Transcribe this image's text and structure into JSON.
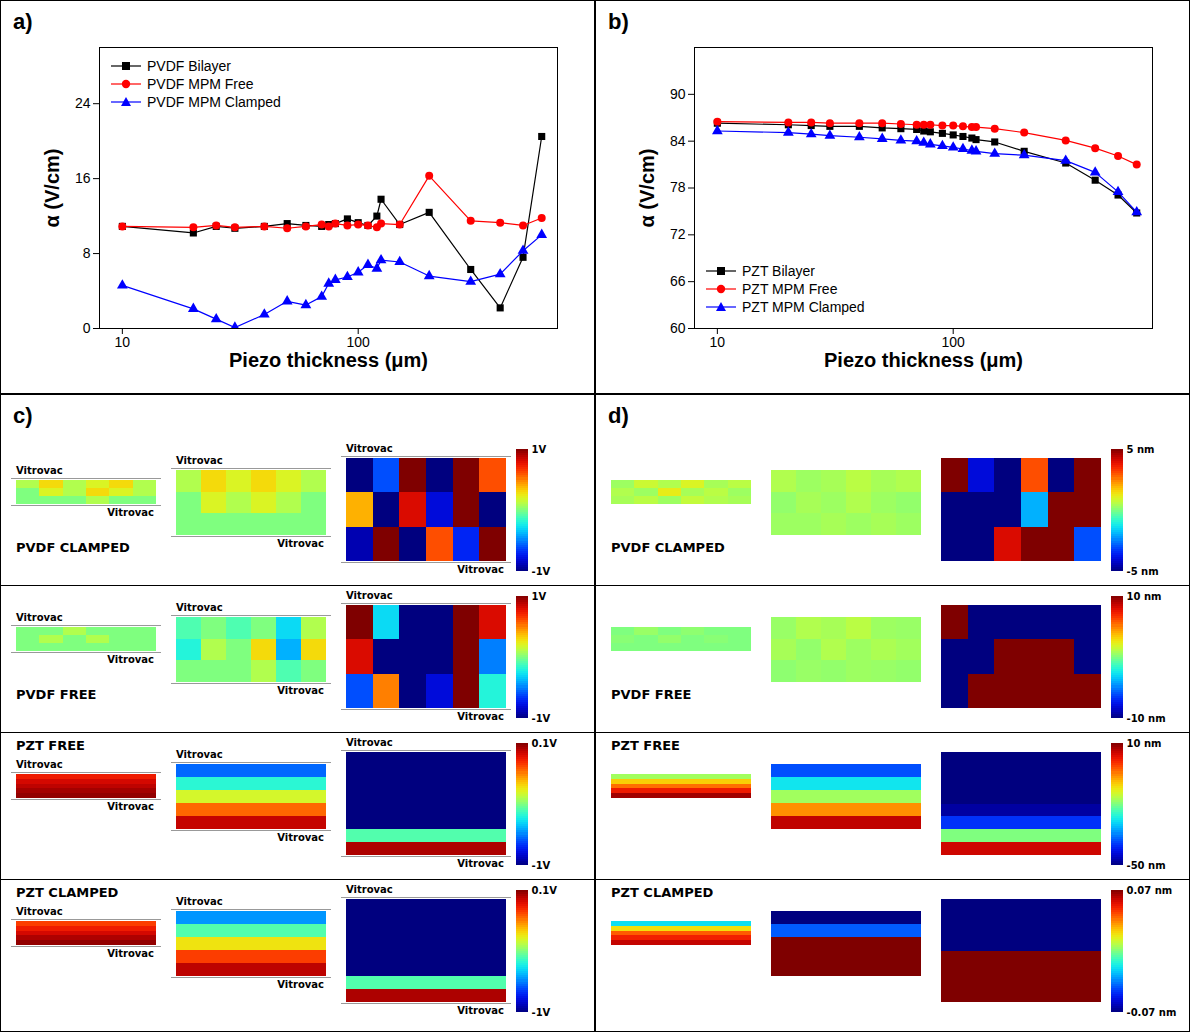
{
  "chart_data": [
    {
      "type": "line",
      "panel": "a)",
      "x_label": "Piezo thickness (μm)",
      "y_label": "α (V/cm)",
      "x": [
        10,
        20,
        25,
        30,
        40,
        50,
        60,
        70,
        75,
        80,
        90,
        100,
        110,
        120,
        125,
        150,
        200,
        300,
        400,
        500,
        600
      ],
      "xlim": [
        8,
        700
      ],
      "xticks": [
        10,
        100
      ],
      "ylim": [
        0,
        30
      ],
      "yticks": [
        0,
        8,
        16,
        24
      ],
      "log": "x",
      "grid": false,
      "legend": "top-left",
      "series": [
        {
          "name": "PVDF Bilayer",
          "color": "#000000",
          "marker": "square",
          "values": [
            10.9,
            10.2,
            10.9,
            10.7,
            10.9,
            11.2,
            11.0,
            10.9,
            11.1,
            11.2,
            11.7,
            11.3,
            11.0,
            12.0,
            13.8,
            11.1,
            12.4,
            6.3,
            2.2,
            7.6,
            20.5
          ]
        },
        {
          "name": "PVDF MPM Free",
          "color": "#ff0000",
          "marker": "circle",
          "values": [
            10.9,
            10.8,
            11.0,
            10.8,
            10.9,
            10.7,
            10.9,
            11.1,
            10.9,
            11.2,
            11.0,
            11.1,
            11.0,
            10.8,
            11.2,
            11.1,
            16.3,
            11.5,
            11.3,
            11.0,
            11.8
          ]
        },
        {
          "name": "PVDF MPM Clamped",
          "color": "#0000ff",
          "marker": "triangle",
          "values": [
            4.6,
            2.1,
            1.0,
            0.1,
            1.5,
            2.9,
            2.5,
            3.4,
            4.8,
            5.2,
            5.5,
            6.0,
            6.8,
            6.4,
            7.3,
            7.1,
            5.6,
            5.0,
            5.8,
            8.3,
            10.0
          ]
        }
      ]
    },
    {
      "type": "line",
      "panel": "b)",
      "x_label": "Piezo thickness (μm)",
      "y_label": "α (V/cm)",
      "x": [
        10,
        20,
        25,
        30,
        40,
        50,
        60,
        70,
        75,
        80,
        90,
        100,
        110,
        120,
        125,
        150,
        200,
        300,
        400,
        500,
        600
      ],
      "xlim": [
        8,
        700
      ],
      "xticks": [
        10,
        100
      ],
      "ylim": [
        60,
        96
      ],
      "yticks": [
        60,
        66,
        72,
        78,
        84,
        90
      ],
      "log": "x",
      "grid": false,
      "legend": "bottom-left",
      "series": [
        {
          "name": "PZT Bilayer",
          "color": "#000000",
          "marker": "square",
          "values": [
            86.3,
            86.1,
            86.0,
            85.9,
            85.9,
            85.7,
            85.6,
            85.5,
            85.3,
            85.2,
            85.0,
            84.8,
            84.6,
            84.4,
            84.2,
            83.9,
            82.7,
            81.2,
            79.0,
            77.1,
            74.8
          ]
        },
        {
          "name": "PZT MPM Free",
          "color": "#ff0000",
          "marker": "circle",
          "values": [
            86.5,
            86.4,
            86.4,
            86.3,
            86.3,
            86.3,
            86.2,
            86.1,
            86.1,
            86.1,
            86.0,
            86.0,
            85.9,
            85.8,
            85.8,
            85.6,
            85.1,
            84.1,
            83.1,
            82.1,
            81.0
          ]
        },
        {
          "name": "PZT MPM Clamped",
          "color": "#0000ff",
          "marker": "triangle",
          "values": [
            85.3,
            85.1,
            84.9,
            84.7,
            84.5,
            84.3,
            84.1,
            84.0,
            83.8,
            83.6,
            83.4,
            83.2,
            83.0,
            82.8,
            82.7,
            82.4,
            82.2,
            81.5,
            80.0,
            77.5,
            74.9
          ]
        }
      ]
    },
    {
      "type": "heatmap",
      "panel": "c)",
      "layer_label": "Vitrovac",
      "rows": [
        {
          "label": "PVDF CLAMPED",
          "colorbar": {
            "range": [
              -1,
              1
            ],
            "ticks": [
              {
                "value": 1,
                "label": "1V"
              },
              {
                "value": -1,
                "label": "-1V"
              }
            ]
          },
          "maps": [
            [
              [
                0.1,
                0.3,
                0.1,
                0.2,
                0.3,
                0.1
              ],
              [
                0.0,
                0.2,
                0.1,
                0.3,
                0.2,
                0.1
              ],
              [
                0.0,
                0.0,
                0.0,
                0.1,
                0.0,
                0.0
              ]
            ],
            [
              [
                0.1,
                0.3,
                0.2,
                0.3,
                0.2,
                0.1
              ],
              [
                0.0,
                0.2,
                0.1,
                0.2,
                0.1,
                0.0
              ],
              [
                0.0,
                0.0,
                0.0,
                0.0,
                0.0,
                0.0
              ]
            ],
            [
              [
                -1,
                -0.6,
                1,
                -1,
                1,
                0.6
              ],
              [
                0.4,
                -1,
                0.8,
                -0.8,
                1,
                -1
              ],
              [
                -0.9,
                1,
                -1,
                0.6,
                -0.7,
                1
              ]
            ]
          ]
        },
        {
          "label": "PVDF FREE",
          "colorbar": {
            "range": [
              -1,
              1
            ],
            "ticks": [
              {
                "value": 1,
                "label": "1V"
              },
              {
                "value": -1,
                "label": "-1V"
              }
            ]
          },
          "maps": [
            [
              [
                0.0,
                0.0,
                0.1,
                0.0,
                0.0,
                0.0
              ],
              [
                0.0,
                0.1,
                0.0,
                0.1,
                0.0,
                0.0
              ],
              [
                0.0,
                0.0,
                0.0,
                0.0,
                0.0,
                0.0
              ]
            ],
            [
              [
                -0.1,
                0.0,
                -0.1,
                0.0,
                -0.3,
                0.1
              ],
              [
                -0.2,
                0.1,
                0.0,
                0.3,
                -0.4,
                0.3
              ],
              [
                0.0,
                0.0,
                0.0,
                0.1,
                -0.1,
                0.0
              ]
            ],
            [
              [
                1,
                -0.3,
                -1,
                -1,
                1,
                0.8
              ],
              [
                0.8,
                -1,
                -1,
                -1,
                1,
                -0.5
              ],
              [
                -0.6,
                0.5,
                -1,
                -0.8,
                1,
                -0.2
              ]
            ]
          ]
        },
        {
          "label": "PZT FREE",
          "colorbar": {
            "range": [
              -1,
              0.1
            ],
            "ticks": [
              {
                "value": 0.1,
                "label": "0.1V"
              },
              {
                "value": -1,
                "label": "-1V"
              }
            ]
          },
          "maps": [
            [
              [
                -0.05
              ],
              [
                0.0
              ],
              [
                0.03
              ],
              [
                0.06
              ],
              [
                0.08
              ]
            ],
            [
              [
                -0.75
              ],
              [
                -0.55
              ],
              [
                -0.35
              ],
              [
                -0.15
              ],
              [
                0.02
              ]
            ],
            [
              [
                -1
              ],
              [
                -1
              ],
              [
                -1
              ],
              [
                -1
              ],
              [
                -1
              ],
              [
                -1
              ],
              [
                -0.5
              ],
              [
                0.05
              ]
            ]
          ]
        },
        {
          "label": "PZT CLAMPED",
          "colorbar": {
            "range": [
              -1,
              0.1
            ],
            "ticks": [
              {
                "value": 0.1,
                "label": "0.1V"
              },
              {
                "value": -1,
                "label": "-1V"
              }
            ]
          },
          "maps": [
            [
              [
                -0.1
              ],
              [
                -0.05
              ],
              [
                0.0
              ],
              [
                0.05
              ],
              [
                0.08
              ]
            ],
            [
              [
                -0.7
              ],
              [
                -0.5
              ],
              [
                -0.3
              ],
              [
                -0.1
              ],
              [
                0.03
              ]
            ],
            [
              [
                -1
              ],
              [
                -1
              ],
              [
                -1
              ],
              [
                -1
              ],
              [
                -1
              ],
              [
                -1
              ],
              [
                -0.5
              ],
              [
                0.05
              ]
            ]
          ]
        }
      ]
    },
    {
      "type": "heatmap",
      "panel": "d)",
      "rows": [
        {
          "label": "PVDF CLAMPED",
          "colorbar": {
            "range": [
              -5,
              5
            ],
            "ticks": [
              {
                "value": 5,
                "label": "5 nm"
              },
              {
                "value": -5,
                "label": "-5 nm"
              }
            ]
          },
          "maps": [
            [
              [
                0.3,
                0.8,
                0.5,
                1.0,
                0.4,
                0.6
              ],
              [
                0.5,
                0.3,
                1.2,
                0.4,
                0.6,
                0.3
              ],
              [
                0.4,
                0.6,
                0.3,
                0.7,
                0.5,
                0.4
              ]
            ],
            [
              [
                0.5,
                0.3,
                0.4,
                0.6,
                0.4,
                0.5
              ],
              [
                0.2,
                0.4,
                0.3,
                0.5,
                0.3,
                0.2
              ],
              [
                0.3,
                0.3,
                0.4,
                0.3,
                0.4,
                0.3
              ]
            ],
            [
              [
                5,
                -4,
                -5,
                3,
                -5,
                5
              ],
              [
                -5,
                -5,
                -5,
                -2,
                5,
                5
              ],
              [
                -5,
                -5,
                4,
                5,
                5,
                -3
              ]
            ]
          ]
        },
        {
          "label": "PVDF FREE",
          "colorbar": {
            "range": [
              -10,
              10
            ],
            "ticks": [
              {
                "value": 10,
                "label": "10 nm"
              },
              {
                "value": -10,
                "label": "-10 nm"
              }
            ]
          },
          "maps": [
            [
              [
                0,
                0.5,
                0,
                0.3,
                0,
                0
              ],
              [
                0.2,
                0,
                0.4,
                0,
                0.2,
                0
              ],
              [
                0,
                0,
                0,
                0,
                0,
                0
              ]
            ],
            [
              [
                0.5,
                1,
                0.8,
                1.2,
                0.6,
                0.5
              ],
              [
                0.8,
                0.4,
                1,
                0.6,
                0.9,
                0.7
              ],
              [
                0.3,
                0.5,
                0.4,
                0.6,
                0.5,
                0.4
              ]
            ],
            [
              [
                10,
                -10,
                -10,
                -10,
                -10,
                -10
              ],
              [
                -10,
                -10,
                10,
                10,
                10,
                -10
              ],
              [
                -10,
                10,
                10,
                10,
                10,
                10
              ]
            ]
          ]
        },
        {
          "label": "PZT FREE",
          "colorbar": {
            "range": [
              -50,
              10
            ],
            "ticks": [
              {
                "value": 10,
                "label": "10 nm"
              },
              {
                "value": -50,
                "label": "-50 nm"
              }
            ]
          },
          "maps": [
            [
              [
                -18
              ],
              [
                -10
              ],
              [
                -4
              ],
              [
                2
              ],
              [
                8
              ]
            ],
            [
              [
                -38
              ],
              [
                -28
              ],
              [
                -18
              ],
              [
                -6
              ],
              [
                6
              ]
            ],
            [
              [
                -50
              ],
              [
                -50
              ],
              [
                -50
              ],
              [
                -50
              ],
              [
                -48
              ],
              [
                -40
              ],
              [
                -20
              ],
              [
                5
              ]
            ]
          ]
        },
        {
          "label": "PZT CLAMPED",
          "colorbar": {
            "range": [
              -0.07,
              0.07
            ],
            "ticks": [
              {
                "value": 0.07,
                "label": "0.07 nm"
              },
              {
                "value": -0.07,
                "label": "-0.07 nm"
              }
            ]
          },
          "maps": [
            [
              [
                -0.02
              ],
              [
                0.02
              ],
              [
                0.04
              ],
              [
                0.05
              ],
              [
                0.06
              ]
            ],
            [
              [
                -0.07
              ],
              [
                -0.04
              ],
              [
                0.07
              ],
              [
                0.07
              ],
              [
                0.07
              ]
            ],
            [
              [
                -0.07
              ],
              [
                -0.07
              ],
              [
                -0.07
              ],
              [
                0.07
              ],
              [
                0.07
              ],
              [
                0.07
              ]
            ]
          ]
        }
      ]
    }
  ]
}
